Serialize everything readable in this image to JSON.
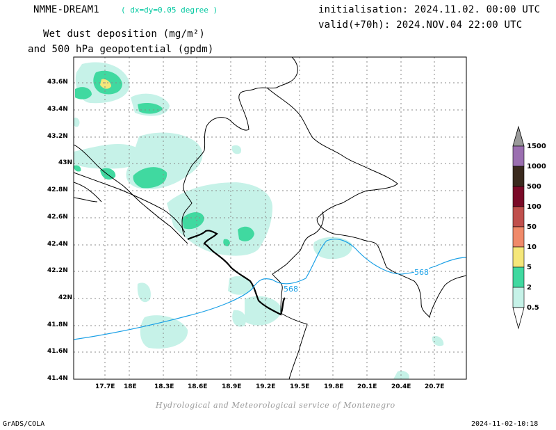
{
  "header": {
    "model": "NMME-DREAM1",
    "resolution": "( dx=dy=0.05 degree )",
    "title_line1": "Wet dust deposition (mg/m²)",
    "title_line2": "and 500 hPa geopotential (gpdm)",
    "init": "initialisation: 2024.11.02. 00:00 UTC",
    "valid": "valid(+70h): 2024.NOV.04 22:00 UTC"
  },
  "footer": {
    "credit": "Hydrological and Meteorological service of Montenegro",
    "software": "GrADS/COLA",
    "timestamp": "2024-11-02-10:18"
  },
  "map": {
    "lon_ticks": [
      "17.7E",
      "18E",
      "18.3E",
      "18.6E",
      "18.9E",
      "19.2E",
      "19.5E",
      "19.8E",
      "20.1E",
      "20.4E",
      "20.7E"
    ],
    "lat_ticks": [
      "43.6N",
      "43.4N",
      "43.2N",
      "43N",
      "42.8N",
      "42.6N",
      "42.4N",
      "42.2N",
      "42N",
      "41.8N",
      "41.6N",
      "41.4N"
    ],
    "contour_labels": [
      "568",
      "568"
    ],
    "contour_color": "#1aa0e6"
  },
  "colorbar": {
    "labels": [
      "1500",
      "1000",
      "500",
      "100",
      "50",
      "10",
      "5",
      "2",
      "0.5"
    ],
    "colors": [
      "#9a9a9a",
      "#9b6fb0",
      "#3a2a1e",
      "#7a0a28",
      "#c0504d",
      "#f08a6a",
      "#f5e77a",
      "#40d9a0",
      "#c6f2e8"
    ]
  }
}
